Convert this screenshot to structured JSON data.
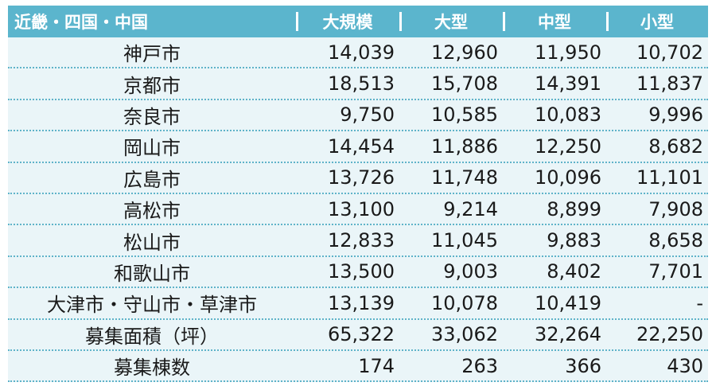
{
  "header": {
    "region": "近畿・四国・中国",
    "columns": [
      "大規模",
      "大型",
      "中型",
      "小型"
    ]
  },
  "rows": [
    {
      "name": "神戸市",
      "values": [
        "14,039",
        "12,960",
        "11,950",
        "10,702"
      ]
    },
    {
      "name": "京都市",
      "values": [
        "18,513",
        "15,708",
        "14,391",
        "11,837"
      ]
    },
    {
      "name": "奈良市",
      "values": [
        "9,750",
        "10,585",
        "10,083",
        "9,996"
      ]
    },
    {
      "name": "岡山市",
      "values": [
        "14,454",
        "11,886",
        "12,250",
        "8,682"
      ]
    },
    {
      "name": "広島市",
      "values": [
        "13,726",
        "11,748",
        "10,096",
        "11,101"
      ]
    },
    {
      "name": "高松市",
      "values": [
        "13,100",
        "9,214",
        "8,899",
        "7,908"
      ]
    },
    {
      "name": "松山市",
      "values": [
        "12,833",
        "11,045",
        "9,883",
        "8,658"
      ]
    },
    {
      "name": "和歌山市",
      "values": [
        "13,500",
        "9,003",
        "8,402",
        "7,701"
      ]
    },
    {
      "name": "大津市・守山市・草津市",
      "values": [
        "13,139",
        "10,078",
        "10,419",
        "-"
      ]
    },
    {
      "name": "募集面積（坪）",
      "values": [
        "65,322",
        "33,062",
        "32,264",
        "22,250"
      ]
    },
    {
      "name": "募集棟数",
      "values": [
        "174",
        "263",
        "366",
        "430"
      ]
    }
  ]
}
